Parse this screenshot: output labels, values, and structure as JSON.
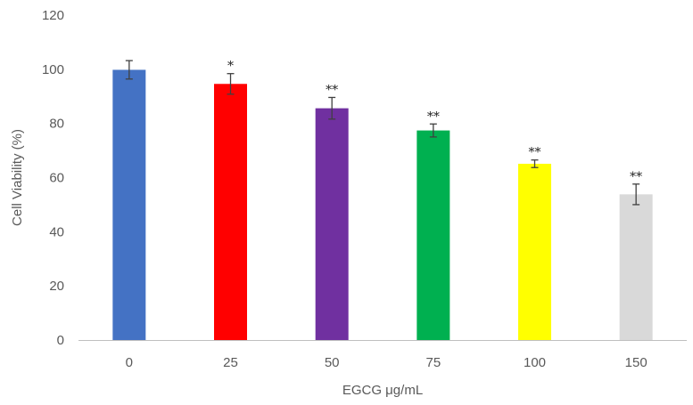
{
  "chart_data": {
    "type": "bar",
    "categories": [
      "0",
      "25",
      "50",
      "75",
      "100",
      "150"
    ],
    "values": [
      99.8,
      94.6,
      85.6,
      77.4,
      65.1,
      53.8
    ],
    "errors": [
      3.4,
      3.8,
      4.0,
      2.4,
      1.4,
      3.8
    ],
    "significance": [
      "",
      "*",
      "**",
      "**",
      "**",
      "**"
    ],
    "colors": [
      "#4472C4",
      "#FF0000",
      "#7030A0",
      "#00B050",
      "#FFFF00",
      "#D9D9D9"
    ],
    "xlabel": "EGCG μg/mL",
    "ylabel": "Cell Viability (%)",
    "ylim": [
      0,
      120
    ],
    "yticks": [
      0,
      20,
      40,
      60,
      80,
      100,
      120
    ],
    "grid": false,
    "legend": "none"
  }
}
